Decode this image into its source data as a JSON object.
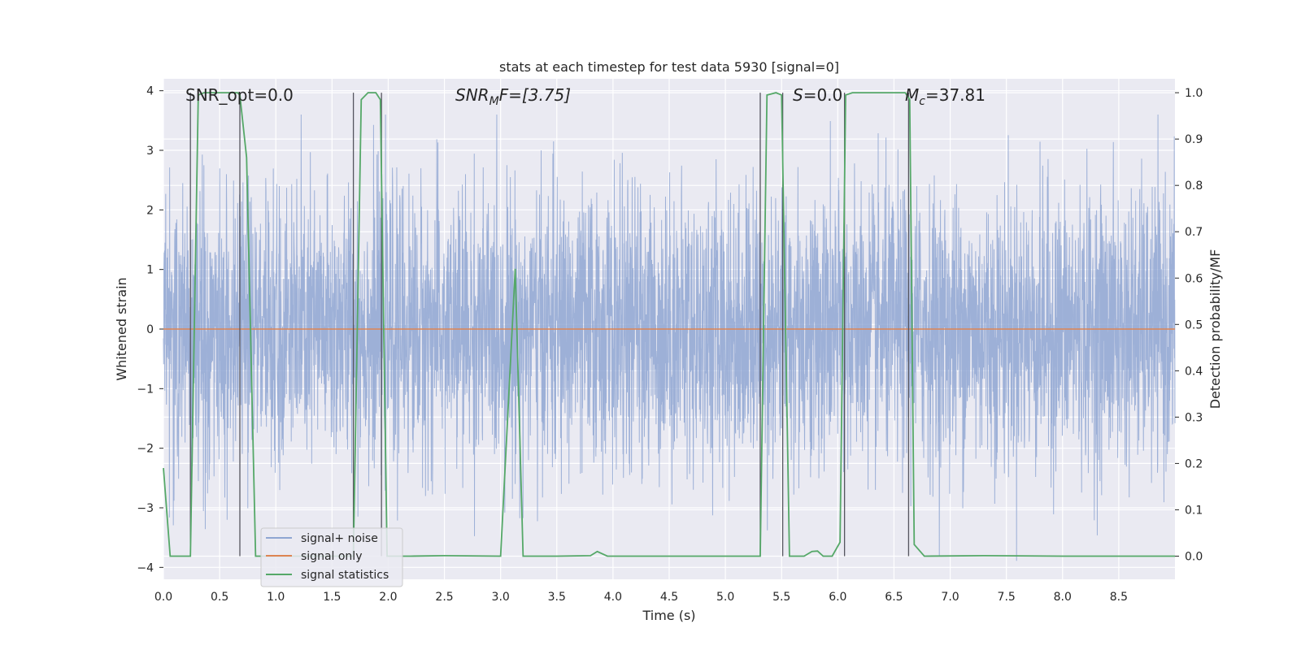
{
  "chart_data": {
    "type": "line",
    "title": "stats at each timestep for test data 5930 [signal=0]",
    "xlabel": "Time (s)",
    "ylabel_left": "Whitened strain",
    "ylabel_right": "Detection probability/MF",
    "xlim": [
      0,
      9.0
    ],
    "ylim_left": [
      -4.2,
      4.2
    ],
    "ylim_right": [
      -0.05,
      1.03
    ],
    "xticks": [
      "0.0",
      "0.5",
      "1.0",
      "1.5",
      "2.0",
      "2.5",
      "3.0",
      "3.5",
      "4.0",
      "4.5",
      "5.0",
      "5.5",
      "6.0",
      "6.5",
      "7.0",
      "7.5",
      "8.0",
      "8.5"
    ],
    "yticks_left": [
      "−4",
      "−3",
      "−2",
      "−1",
      "0",
      "1",
      "2",
      "3",
      "4"
    ],
    "yticks_right": [
      "0.0",
      "0.1",
      "0.2",
      "0.3",
      "0.4",
      "0.5",
      "0.6",
      "0.7",
      "0.8",
      "0.9",
      "1.0"
    ],
    "grid": true,
    "legend_loc": "lower left",
    "annotations": {
      "snr_opt": "SNR_opt=0.0",
      "snr_mf_base": "SNR",
      "snr_mf_sub": "M",
      "snr_mf_rest": "F=[3.75]",
      "s_base": "S",
      "s_rest": "=0.0",
      "mc_base": "M",
      "mc_sub": "c",
      "mc_rest": "=37.81"
    },
    "series": [
      {
        "name": "signal+ noise",
        "color": "#8fa6d2",
        "description": "whitened strain, noise amplitude roughly between -3.9 and 3.6"
      },
      {
        "name": "signal only",
        "color": "#dd8452",
        "values_constant": 0
      },
      {
        "name": "signal statistics",
        "color": "#55a868",
        "x": [
          0.0,
          0.06,
          0.24,
          0.31,
          0.36,
          0.66,
          0.68,
          0.74,
          0.82,
          0.98,
          1.2,
          1.69,
          1.76,
          1.82,
          1.89,
          1.93,
          1.99,
          2.2,
          2.5,
          3.0,
          3.13,
          3.2,
          3.5,
          3.8,
          3.86,
          3.95,
          4.3,
          5.0,
          5.31,
          5.37,
          5.45,
          5.5,
          5.57,
          5.7,
          5.77,
          5.82,
          5.87,
          5.95,
          6.02,
          6.07,
          6.13,
          6.6,
          6.64,
          6.68,
          6.77,
          7.3,
          8.0,
          9.0
        ],
        "values": [
          0.19,
          0.0,
          0.0,
          0.995,
          1.0,
          1.0,
          0.995,
          0.86,
          0.0,
          0.0,
          0.0,
          0.0,
          0.985,
          1.0,
          1.0,
          0.985,
          0.0,
          0.0,
          0.001,
          0.0,
          0.62,
          0.0,
          0.0,
          0.001,
          0.01,
          0.0,
          0.0,
          0.0,
          0.0,
          0.995,
          1.0,
          0.995,
          0.0,
          0.0,
          0.01,
          0.011,
          0.0,
          0.0,
          0.03,
          0.995,
          1.0,
          1.0,
          0.985,
          0.025,
          0.0,
          0.001,
          0.0,
          0.0
        ]
      },
      {
        "name": "",
        "color": "#55555f",
        "description": "vertical markers at event boundaries",
        "x": [
          0.24,
          0.68,
          1.69,
          1.94,
          5.31,
          5.51,
          6.06,
          6.63
        ]
      }
    ]
  }
}
